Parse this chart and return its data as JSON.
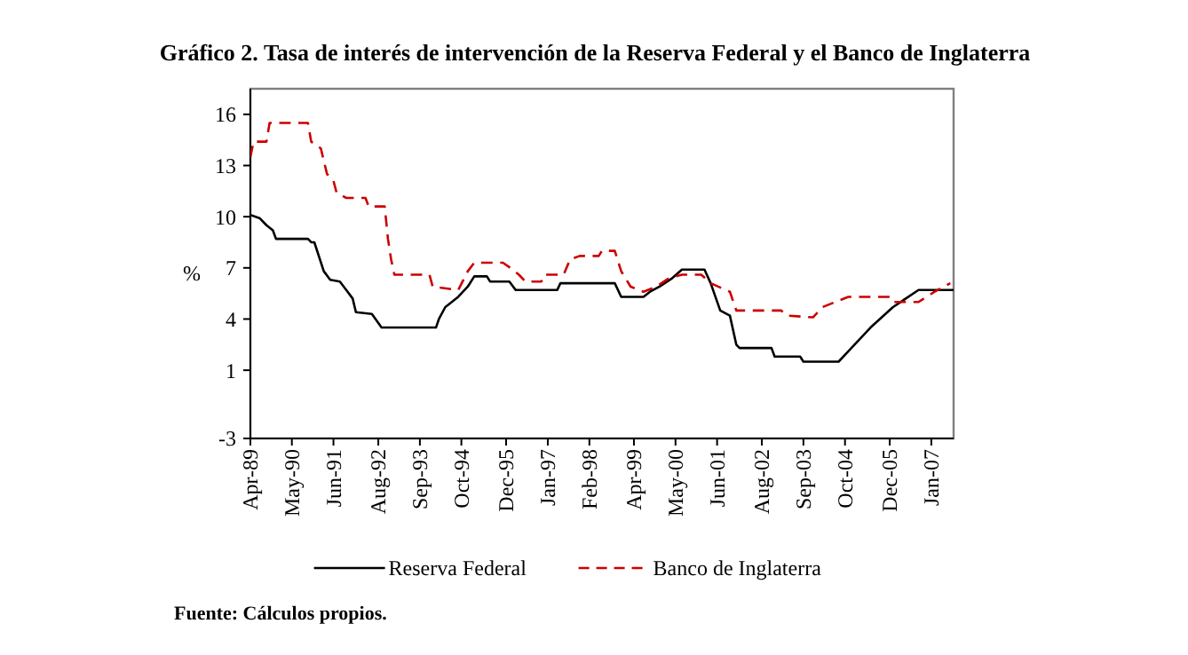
{
  "chart_data": {
    "type": "line",
    "title": "Gráfico 2. Tasa de interés de intervención de la Reserva Federal y el Banco de Inglaterra",
    "ylabel": "%",
    "xlim": [
      "1989-04",
      "2007-08"
    ],
    "ylim": [
      -3,
      17.5
    ],
    "yticks": [
      16,
      13,
      10,
      7,
      4,
      1,
      -3
    ],
    "xticks": [
      {
        "value": "1989-04",
        "label": "Apr-89"
      },
      {
        "value": "1990-05",
        "label": "May-90"
      },
      {
        "value": "1991-06",
        "label": "Jun-91"
      },
      {
        "value": "1992-08",
        "label": "Aug-92"
      },
      {
        "value": "1993-09",
        "label": "Sep-93"
      },
      {
        "value": "1994-10",
        "label": "Oct-94"
      },
      {
        "value": "1995-12",
        "label": "Dec-95"
      },
      {
        "value": "1997-01",
        "label": "Jan-97"
      },
      {
        "value": "1998-02",
        "label": "Feb-98"
      },
      {
        "value": "1999-04",
        "label": "Apr-99"
      },
      {
        "value": "2000-05",
        "label": "May-00"
      },
      {
        "value": "2001-06",
        "label": "Jun-01"
      },
      {
        "value": "2002-08",
        "label": "Aug-02"
      },
      {
        "value": "2003-09",
        "label": "Sep-03"
      },
      {
        "value": "2004-10",
        "label": "Oct-04"
      },
      {
        "value": "2005-12",
        "label": "Dec-05"
      },
      {
        "value": "2007-01",
        "label": "Jan-07"
      }
    ],
    "grid": false,
    "legend": "bottom",
    "series": [
      {
        "name": "Reserva Federal",
        "color": "#000000",
        "line_style": "solid",
        "x": [
          "1989-04",
          "1989-07",
          "1989-09",
          "1989-11",
          "1989-12",
          "1990-10",
          "1990-11",
          "1990-12",
          "1991-03",
          "1991-05",
          "1991-08",
          "1991-10",
          "1991-12",
          "1992-01",
          "1992-06",
          "1992-09",
          "1994-02",
          "1994-03",
          "1994-05",
          "1994-09",
          "1994-12",
          "1995-02",
          "1995-06",
          "1995-07",
          "1996-01",
          "1996-03",
          "1997-04",
          "1997-05",
          "1998-10",
          "1998-12",
          "1999-07",
          "1999-09",
          "1999-12",
          "2000-04",
          "2000-07",
          "2001-02",
          "2001-04",
          "2001-07",
          "2001-10",
          "2001-12",
          "2002-01",
          "2002-11",
          "2002-12",
          "2003-08",
          "2003-09",
          "2004-08",
          "2004-11",
          "2005-06",
          "2006-01",
          "2006-09",
          "2007-08"
        ],
        "values": [
          10.1,
          9.9,
          9.5,
          9.2,
          8.7,
          8.7,
          8.5,
          8.5,
          6.8,
          6.3,
          6.2,
          5.7,
          5.2,
          4.4,
          4.3,
          3.5,
          3.5,
          4.0,
          4.7,
          5.3,
          5.9,
          6.5,
          6.5,
          6.2,
          6.2,
          5.7,
          5.7,
          6.1,
          6.1,
          5.3,
          5.3,
          5.6,
          5.9,
          6.4,
          6.9,
          6.9,
          6.1,
          4.5,
          4.2,
          2.5,
          2.3,
          2.3,
          1.8,
          1.8,
          1.5,
          1.5,
          2.1,
          3.5,
          4.7,
          5.7,
          5.7
        ]
      },
      {
        "name": "Banco de Inglaterra",
        "color": "#cc0000",
        "line_style": "dashed",
        "x": [
          "1989-04",
          "1989-05",
          "1989-09",
          "1989-10",
          "1990-10",
          "1990-11",
          "1991-02",
          "1991-04",
          "1991-06",
          "1991-07",
          "1991-10",
          "1992-04",
          "1992-05",
          "1992-10",
          "1992-11",
          "1992-12",
          "1993-01",
          "1993-12",
          "1994-01",
          "1994-09",
          "1994-12",
          "1995-02",
          "1995-11",
          "1996-02",
          "1996-04",
          "1996-06",
          "1996-11",
          "1996-12",
          "1997-06",
          "1997-08",
          "1997-11",
          "1998-05",
          "1998-06",
          "1998-10",
          "1998-12",
          "1999-03",
          "1999-07",
          "1999-11",
          "2000-03",
          "2000-07",
          "2001-01",
          "2001-04",
          "2001-10",
          "2001-12",
          "2003-02",
          "2003-04",
          "2003-12",
          "2004-03",
          "2004-07",
          "2004-11",
          "2005-12",
          "2006-01",
          "2006-09",
          "2007-02",
          "2007-07"
        ],
        "values": [
          13.5,
          14.4,
          14.4,
          15.5,
          15.5,
          14.4,
          14.0,
          12.5,
          12.1,
          11.4,
          11.1,
          11.1,
          10.6,
          10.6,
          8.7,
          7.5,
          6.6,
          6.6,
          5.9,
          5.7,
          6.8,
          7.3,
          7.3,
          6.9,
          6.6,
          6.2,
          6.2,
          6.6,
          6.6,
          7.5,
          7.7,
          7.7,
          8.0,
          8.0,
          6.8,
          5.9,
          5.6,
          5.9,
          6.4,
          6.6,
          6.6,
          6.1,
          5.6,
          4.5,
          4.5,
          4.2,
          4.1,
          4.7,
          5.0,
          5.3,
          5.3,
          5.0,
          5.0,
          5.6,
          6.1
        ]
      }
    ],
    "annotations": [
      "Fuente: Cálculos propios."
    ]
  }
}
